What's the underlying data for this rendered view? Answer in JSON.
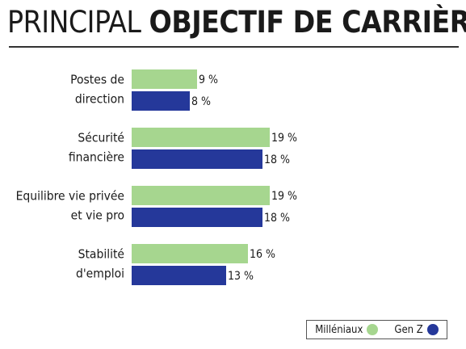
{
  "title_light": "PRINCIPAL",
  "title_bold": "OBJECTIF DE CARRIÈRE",
  "colors": {
    "green": "#a6d68f",
    "blue": "#25389a"
  },
  "chart_data": {
    "type": "bar",
    "orientation": "horizontal",
    "title": "PRINCIPAL OBJECTIF DE CARRIÈRE",
    "categories": [
      [
        "Postes de",
        "direction"
      ],
      [
        "Sécurité",
        "financière"
      ],
      [
        "Equilibre vie privée",
        "et vie pro"
      ],
      [
        "Stabilité",
        "d'emploi"
      ]
    ],
    "series": [
      {
        "name": "Milléniaux",
        "color": "#a6d68f",
        "values": [
          9,
          19,
          19,
          16
        ],
        "labels": [
          "9 %",
          "19 %",
          "19 %",
          "16 %"
        ]
      },
      {
        "name": "Gen Z",
        "color": "#25389a",
        "values": [
          8,
          18,
          18,
          13
        ],
        "labels": [
          "8 %",
          "18 %",
          "18 %",
          "13 %"
        ]
      }
    ],
    "xlim": [
      0,
      19
    ],
    "unit": "%",
    "legend_position": "bottom-right",
    "grid": false
  },
  "legend": {
    "items": [
      "Milléniaux",
      "Gen Z"
    ]
  }
}
